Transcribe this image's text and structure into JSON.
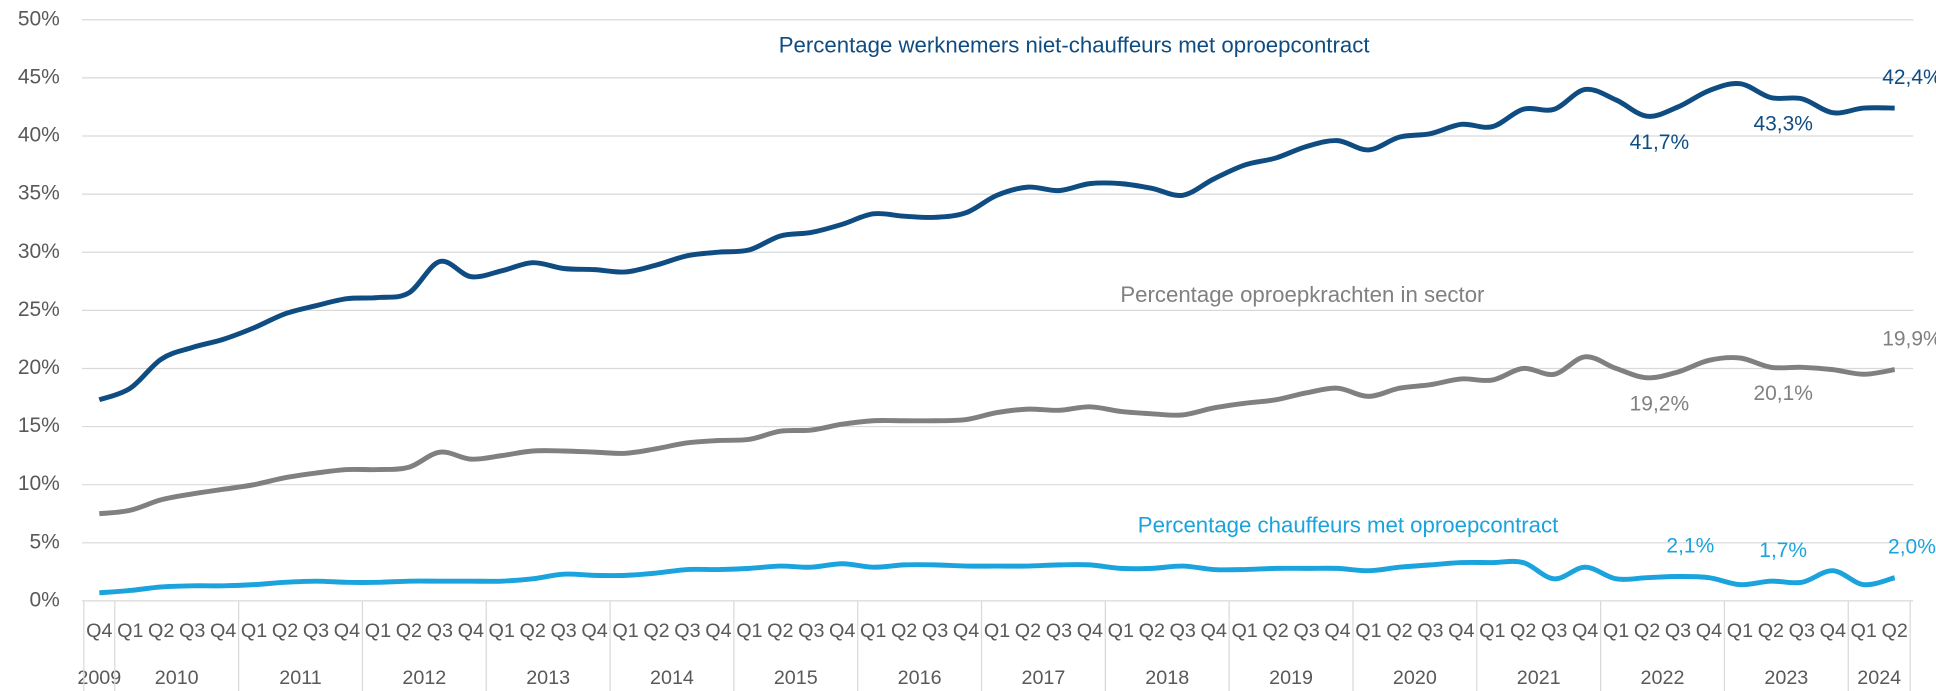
{
  "chart_data": {
    "type": "line",
    "categories": [
      "Q4",
      "Q1",
      "Q2",
      "Q3",
      "Q4",
      "Q1",
      "Q2",
      "Q3",
      "Q4",
      "Q1",
      "Q2",
      "Q3",
      "Q4",
      "Q1",
      "Q2",
      "Q3",
      "Q4",
      "Q1",
      "Q2",
      "Q3",
      "Q4",
      "Q1",
      "Q2",
      "Q3",
      "Q4",
      "Q1",
      "Q2",
      "Q3",
      "Q4",
      "Q1",
      "Q2",
      "Q3",
      "Q4",
      "Q1",
      "Q2",
      "Q3",
      "Q4",
      "Q1",
      "Q2",
      "Q3",
      "Q4",
      "Q1",
      "Q2",
      "Q3",
      "Q4",
      "Q1",
      "Q2",
      "Q3",
      "Q4",
      "Q1",
      "Q2",
      "Q3",
      "Q4",
      "Q1",
      "Q2",
      "Q3",
      "Q4",
      "Q1",
      "Q2"
    ],
    "x_groups": [
      {
        "label": "2009",
        "count": 1
      },
      {
        "label": "2010",
        "count": 4
      },
      {
        "label": "2011",
        "count": 4
      },
      {
        "label": "2012",
        "count": 4
      },
      {
        "label": "2013",
        "count": 4
      },
      {
        "label": "2014",
        "count": 4
      },
      {
        "label": "2015",
        "count": 4
      },
      {
        "label": "2016",
        "count": 4
      },
      {
        "label": "2017",
        "count": 4
      },
      {
        "label": "2018",
        "count": 4
      },
      {
        "label": "2019",
        "count": 4
      },
      {
        "label": "2020",
        "count": 4
      },
      {
        "label": "2021",
        "count": 4
      },
      {
        "label": "2022",
        "count": 4
      },
      {
        "label": "2023",
        "count": 4
      },
      {
        "label": "2024",
        "count": 2
      }
    ],
    "series": [
      {
        "name": "Percentage werknemers niet-chauffeurs met oproepcontract",
        "color": "#0f4c81",
        "values": [
          17.3,
          18.3,
          20.8,
          21.8,
          22.5,
          23.5,
          24.7,
          25.4,
          26.0,
          26.1,
          26.5,
          29.2,
          27.9,
          28.4,
          29.1,
          28.6,
          28.5,
          28.3,
          28.9,
          29.7,
          30.0,
          30.2,
          31.4,
          31.7,
          32.4,
          33.3,
          33.1,
          33.0,
          33.4,
          34.9,
          35.6,
          35.3,
          35.9,
          35.9,
          35.5,
          34.9,
          36.3,
          37.5,
          38.1,
          39.1,
          39.6,
          38.8,
          39.9,
          40.2,
          41.0,
          40.8,
          42.3,
          42.3,
          44.0,
          43.1,
          41.7,
          42.5,
          43.9,
          44.5,
          43.3,
          43.2,
          42.0,
          42.4,
          42.4
        ],
        "value_labels": [
          null,
          null,
          null,
          null,
          null,
          null,
          null,
          null,
          null,
          null,
          null,
          null,
          null,
          null,
          null,
          null,
          null,
          null,
          null,
          null,
          null,
          null,
          null,
          null,
          null,
          null,
          null,
          null,
          null,
          null,
          null,
          null,
          null,
          null,
          null,
          null,
          null,
          null,
          null,
          null,
          null,
          null,
          null,
          null,
          null,
          null,
          null,
          null,
          null,
          null,
          "41,7%",
          null,
          null,
          null,
          "43,3%",
          null,
          null,
          null,
          "42,4%"
        ]
      },
      {
        "name": "Percentage oproepkrachten in sector",
        "color": "#808080",
        "values": [
          7.5,
          7.8,
          8.7,
          9.2,
          9.6,
          10.0,
          10.6,
          11.0,
          11.3,
          11.3,
          11.5,
          12.8,
          12.2,
          12.5,
          12.9,
          12.9,
          12.8,
          12.7,
          13.1,
          13.6,
          13.8,
          13.9,
          14.6,
          14.7,
          15.2,
          15.5,
          15.5,
          15.5,
          15.6,
          16.2,
          16.5,
          16.4,
          16.7,
          16.3,
          16.1,
          16.0,
          16.6,
          17.0,
          17.3,
          17.9,
          18.3,
          17.6,
          18.3,
          18.6,
          19.1,
          19.0,
          20.0,
          19.5,
          21.0,
          20.0,
          19.2,
          19.7,
          20.7,
          20.9,
          20.1,
          20.1,
          19.9,
          19.5,
          19.9
        ],
        "value_labels": [
          null,
          null,
          null,
          null,
          null,
          null,
          null,
          null,
          null,
          null,
          null,
          null,
          null,
          null,
          null,
          null,
          null,
          null,
          null,
          null,
          null,
          null,
          null,
          null,
          null,
          null,
          null,
          null,
          null,
          null,
          null,
          null,
          null,
          null,
          null,
          null,
          null,
          null,
          null,
          null,
          null,
          null,
          null,
          null,
          null,
          null,
          null,
          null,
          null,
          null,
          "19,2%",
          null,
          null,
          null,
          "20,1%",
          null,
          null,
          null,
          "19,9%"
        ]
      },
      {
        "name": "Percentage chauffeurs met oproepcontract",
        "color": "#1aa3dc",
        "values": [
          0.7,
          0.9,
          1.2,
          1.3,
          1.3,
          1.4,
          1.6,
          1.7,
          1.6,
          1.6,
          1.7,
          1.7,
          1.7,
          1.7,
          1.9,
          2.3,
          2.2,
          2.2,
          2.4,
          2.7,
          2.7,
          2.8,
          3.0,
          2.9,
          3.2,
          2.9,
          3.1,
          3.1,
          3.0,
          3.0,
          3.0,
          3.1,
          3.1,
          2.8,
          2.8,
          3.0,
          2.7,
          2.7,
          2.8,
          2.8,
          2.8,
          2.6,
          2.9,
          3.1,
          3.3,
          3.3,
          3.3,
          1.9,
          2.9,
          1.9,
          2.0,
          2.1,
          2.0,
          1.4,
          1.7,
          1.6,
          2.6,
          1.4,
          2.0
        ],
        "value_labels": [
          null,
          null,
          null,
          null,
          null,
          null,
          null,
          null,
          null,
          null,
          null,
          null,
          null,
          null,
          null,
          null,
          null,
          null,
          null,
          null,
          null,
          null,
          null,
          null,
          null,
          null,
          null,
          null,
          null,
          null,
          null,
          null,
          null,
          null,
          null,
          null,
          null,
          null,
          null,
          null,
          null,
          null,
          null,
          null,
          null,
          null,
          null,
          null,
          null,
          null,
          null,
          "2,1%",
          null,
          null,
          "1,7%",
          null,
          null,
          null,
          "2,0%"
        ]
      }
    ],
    "ylim": [
      0,
      50
    ],
    "yticks": [
      {
        "value": 0,
        "label": "0%"
      },
      {
        "value": 5,
        "label": "5%"
      },
      {
        "value": 10,
        "label": "10%"
      },
      {
        "value": 15,
        "label": "15%"
      },
      {
        "value": 20,
        "label": "20%"
      },
      {
        "value": 25,
        "label": "25%"
      },
      {
        "value": 30,
        "label": "30%"
      },
      {
        "value": 35,
        "label": "35%"
      },
      {
        "value": 40,
        "label": "40%"
      },
      {
        "value": 45,
        "label": "45%"
      },
      {
        "value": 50,
        "label": "50%"
      }
    ],
    "grid": true
  }
}
